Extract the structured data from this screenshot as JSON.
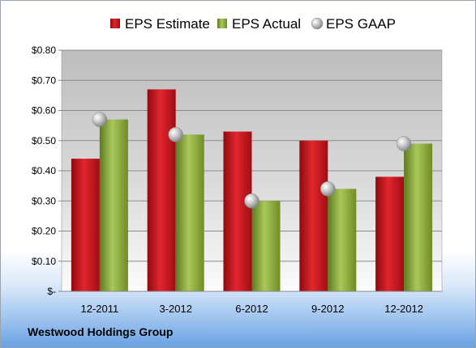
{
  "company": "Westwood Holdings Group",
  "chart_data": {
    "type": "bar",
    "categories": [
      "12-2011",
      "3-2012",
      "6-2012",
      "9-2012",
      "12-2012"
    ],
    "series": [
      {
        "name": "EPS Estimate",
        "kind": "bar",
        "color": "#c0121c",
        "values": [
          0.44,
          0.67,
          0.53,
          0.5,
          0.38
        ]
      },
      {
        "name": "EPS Actual",
        "kind": "bar",
        "color": "#80a030",
        "values": [
          0.57,
          0.52,
          0.3,
          0.34,
          0.49
        ]
      },
      {
        "name": "EPS GAAP",
        "kind": "marker",
        "color": "#b8b8b8",
        "values": [
          0.57,
          0.52,
          0.3,
          0.34,
          0.49
        ]
      }
    ],
    "ylim": [
      0,
      0.8
    ],
    "yticks": [
      0,
      0.1,
      0.2,
      0.3,
      0.4,
      0.5,
      0.6,
      0.7,
      0.8
    ],
    "ytick_labels": [
      "$-",
      "$0.10",
      "$0.20",
      "$0.30",
      "$0.40",
      "$0.50",
      "$0.60",
      "$0.70",
      "$0.80"
    ],
    "grid": true,
    "legend_position": "top"
  }
}
